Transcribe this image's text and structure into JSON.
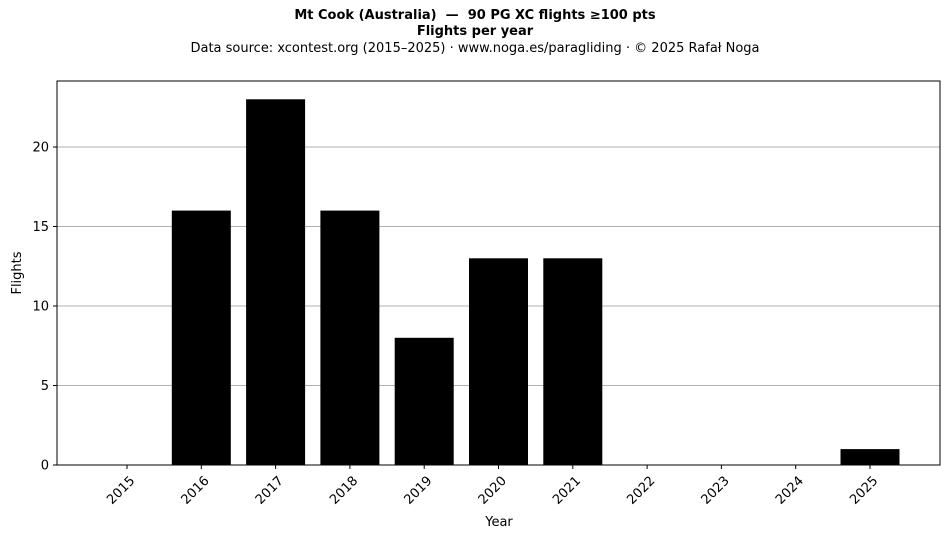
{
  "title": "Mt Cook (Australia)  —  90 PG XC flights ≥100 pts",
  "subtitle": "Flights per year",
  "source": "Data source: xcontest.org (2015–2025)  ·  www.noga.es/paragliding  ·  © 2025 Rafał Noga",
  "chart_data": {
    "type": "bar",
    "categories": [
      "2015",
      "2016",
      "2017",
      "2018",
      "2019",
      "2020",
      "2021",
      "2022",
      "2023",
      "2024",
      "2025"
    ],
    "values": [
      0,
      16,
      23,
      16,
      8,
      13,
      13,
      0,
      0,
      0,
      1
    ],
    "xlabel": "Year",
    "ylabel": "Flights",
    "ylim": [
      0,
      24.15
    ],
    "yticks": [
      0,
      5,
      10,
      15,
      20
    ],
    "grid": "y",
    "bar_color": "#000000",
    "grid_color": "#b0b0b0"
  }
}
